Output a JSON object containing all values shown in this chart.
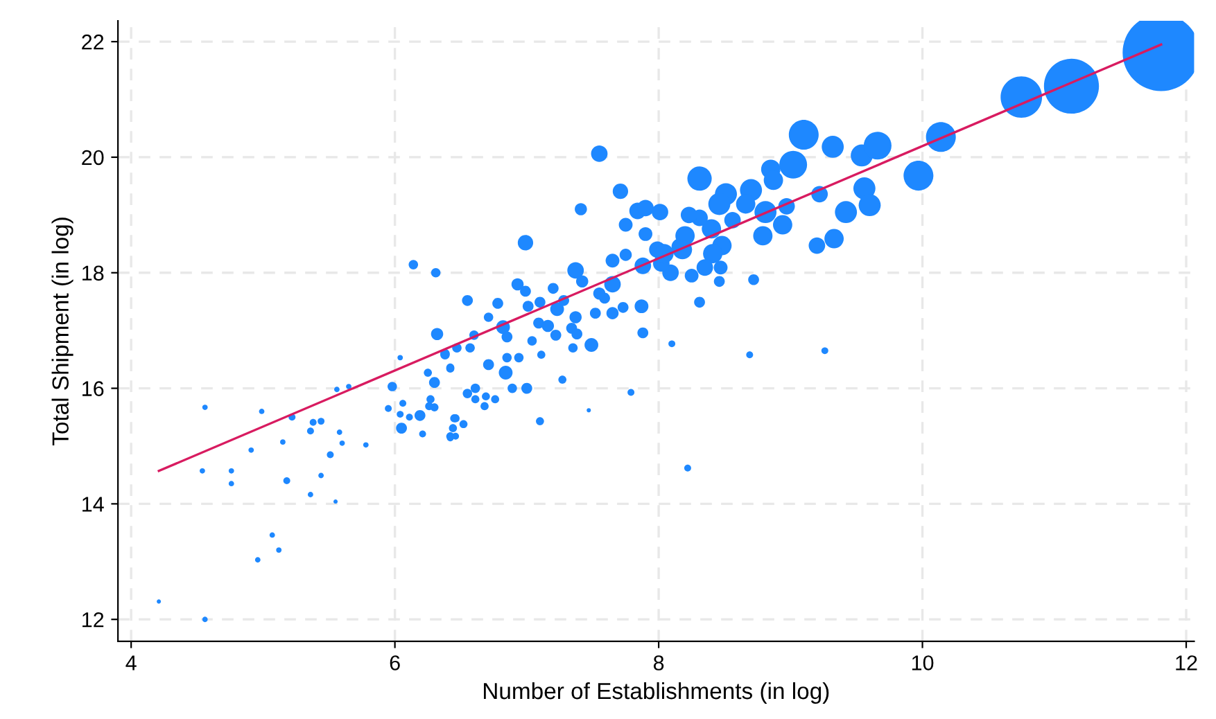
{
  "chart_data": {
    "type": "bubble",
    "xlabel": "Number of Establishments (in log)",
    "ylabel": "Total Shipment (in log)",
    "xlim": [
      3.9,
      12.06
    ],
    "ylim": [
      11.62,
      22.36
    ],
    "xticks": [
      4,
      6,
      8,
      10,
      12
    ],
    "yticks": [
      12,
      14,
      16,
      18,
      20,
      22
    ],
    "grid": true,
    "series": [
      {
        "color": "#1e88ff",
        "marker": "circle",
        "x": [
          4.56,
          4.21,
          4.56,
          4.54,
          4.76,
          4.76,
          4.91,
          4.99,
          5.15,
          5.18,
          5.22,
          5.36,
          5.38,
          5.44,
          5.36,
          5.44,
          5.55,
          5.51,
          5.58,
          5.6,
          5.56,
          5.65,
          5.78,
          5.07,
          5.12,
          4.96,
          5.95,
          6.04,
          5.98,
          6.06,
          6.04,
          6.05,
          6.11,
          6.19,
          6.21,
          6.25,
          6.3,
          6.27,
          6.3,
          6.26,
          6.14,
          6.31,
          6.32,
          6.38,
          6.42,
          6.45,
          6.44,
          6.42,
          7.55,
          7.71,
          7.41,
          6.99,
          6.55,
          6.78,
          6.93,
          6.99,
          6.71,
          6.6,
          6.82,
          6.85,
          7.01,
          7.1,
          7.2,
          7.23,
          7.28,
          7.37,
          7.42,
          7.37,
          7.34,
          7.38,
          7.35,
          7.49,
          7.11,
          6.94,
          6.85,
          6.84,
          6.71,
          7.0,
          6.89,
          7.27,
          7.09,
          7.16,
          7.22,
          7.04,
          6.57,
          6.47,
          6.38,
          6.42,
          6.55,
          6.61,
          6.61,
          6.69,
          6.76,
          6.68,
          6.46,
          6.52,
          6.42,
          6.46,
          7.1,
          7.47,
          7.79,
          8.1,
          7.88,
          7.52,
          7.65,
          7.73,
          7.87,
          7.59,
          7.65,
          7.55,
          7.75,
          7.65,
          7.88,
          7.9,
          7.75,
          7.84,
          7.9,
          8.01,
          7.99,
          8.09,
          8.02,
          8.16,
          9.1,
          9.32,
          9.54,
          9.66,
          8.31,
          9.02,
          8.85,
          8.7,
          8.51,
          8.46,
          8.66,
          8.87,
          9.22,
          9.56,
          9.6,
          9.42,
          8.97,
          8.81,
          8.94,
          8.79,
          9.33,
          9.2,
          8.56,
          8.4,
          8.31,
          8.23,
          8.48,
          8.41,
          8.2,
          8.18,
          8.04,
          8.47,
          8.35,
          8.25,
          8.46,
          8.72,
          8.31,
          8.69,
          9.26,
          11.81,
          11.13,
          10.75,
          10.14,
          9.97,
          8.22
        ],
        "values": [
          15.67,
          12.31,
          12.0,
          14.57,
          14.57,
          14.35,
          14.93,
          15.6,
          15.07,
          14.4,
          15.5,
          15.26,
          15.41,
          15.43,
          14.16,
          14.49,
          14.04,
          14.85,
          15.24,
          15.05,
          15.98,
          16.03,
          15.02,
          13.46,
          13.2,
          13.03,
          15.65,
          16.53,
          16.03,
          15.74,
          15.55,
          15.31,
          15.5,
          15.53,
          15.21,
          16.27,
          16.1,
          15.81,
          15.67,
          15.69,
          18.14,
          18.0,
          16.94,
          16.6,
          16.36,
          15.48,
          15.31,
          15.17,
          20.06,
          19.41,
          19.1,
          18.52,
          17.52,
          17.47,
          17.8,
          17.68,
          17.23,
          16.92,
          17.06,
          16.89,
          17.42,
          17.49,
          17.73,
          17.37,
          17.52,
          18.04,
          17.85,
          17.23,
          17.04,
          16.94,
          16.7,
          16.75,
          16.58,
          16.53,
          16.53,
          16.27,
          16.41,
          16.0,
          16.0,
          16.15,
          17.13,
          17.08,
          16.92,
          16.82,
          16.7,
          16.7,
          16.58,
          16.34,
          15.91,
          16.0,
          15.81,
          15.86,
          15.81,
          15.69,
          15.48,
          15.38,
          15.14,
          15.17,
          15.43,
          15.62,
          15.93,
          16.77,
          16.96,
          17.3,
          17.3,
          17.4,
          17.42,
          17.56,
          17.8,
          17.64,
          18.31,
          18.21,
          18.12,
          18.67,
          18.83,
          19.07,
          19.12,
          19.05,
          18.4,
          18.0,
          18.16,
          18.45,
          20.39,
          20.18,
          20.03,
          20.2,
          19.63,
          19.87,
          19.79,
          19.43,
          19.36,
          19.19,
          19.19,
          19.6,
          19.36,
          19.46,
          19.17,
          19.05,
          19.15,
          19.05,
          18.83,
          18.64,
          18.59,
          18.47,
          18.91,
          18.76,
          18.95,
          19.0,
          18.47,
          18.33,
          18.64,
          18.4,
          18.33,
          18.09,
          18.09,
          17.95,
          17.85,
          17.88,
          17.49,
          16.58,
          16.65,
          21.81,
          21.23,
          21.04,
          20.35,
          19.68,
          14.62
        ],
        "sizes": [
          0.005,
          0.003,
          0.005,
          0.005,
          0.005,
          0.005,
          0.005,
          0.005,
          0.005,
          0.008,
          0.008,
          0.008,
          0.008,
          0.008,
          0.005,
          0.005,
          0.003,
          0.008,
          0.005,
          0.005,
          0.005,
          0.005,
          0.005,
          0.005,
          0.005,
          0.005,
          0.008,
          0.005,
          0.015,
          0.008,
          0.008,
          0.02,
          0.008,
          0.02,
          0.008,
          0.011,
          0.02,
          0.011,
          0.011,
          0.011,
          0.015,
          0.015,
          0.025,
          0.015,
          0.011,
          0.011,
          0.011,
          0.011,
          0.046,
          0.04,
          0.025,
          0.04,
          0.02,
          0.02,
          0.025,
          0.02,
          0.015,
          0.015,
          0.032,
          0.02,
          0.02,
          0.02,
          0.02,
          0.032,
          0.02,
          0.046,
          0.025,
          0.025,
          0.02,
          0.02,
          0.015,
          0.032,
          0.011,
          0.015,
          0.015,
          0.032,
          0.02,
          0.02,
          0.015,
          0.011,
          0.02,
          0.025,
          0.02,
          0.015,
          0.015,
          0.015,
          0.015,
          0.011,
          0.015,
          0.015,
          0.011,
          0.011,
          0.011,
          0.011,
          0.011,
          0.011,
          0.008,
          0.008,
          0.011,
          0.003,
          0.008,
          0.008,
          0.02,
          0.02,
          0.025,
          0.02,
          0.032,
          0.02,
          0.046,
          0.025,
          0.025,
          0.032,
          0.046,
          0.032,
          0.032,
          0.046,
          0.046,
          0.046,
          0.046,
          0.046,
          0.046,
          0.046,
          0.15,
          0.082,
          0.082,
          0.13,
          0.1,
          0.13,
          0.063,
          0.082,
          0.082,
          0.082,
          0.063,
          0.063,
          0.046,
          0.082,
          0.082,
          0.082,
          0.046,
          0.082,
          0.063,
          0.063,
          0.063,
          0.046,
          0.046,
          0.063,
          0.046,
          0.046,
          0.063,
          0.063,
          0.063,
          0.063,
          0.063,
          0.032,
          0.046,
          0.032,
          0.02,
          0.02,
          0.02,
          0.008,
          0.008,
          1,
          0.51,
          0.29,
          0.15,
          0.15,
          0.008
        ]
      },
      {
        "type": "line",
        "color": "#d81b60",
        "x": [
          4.21,
          11.81
        ],
        "values": [
          14.57,
          21.95
        ]
      }
    ]
  }
}
